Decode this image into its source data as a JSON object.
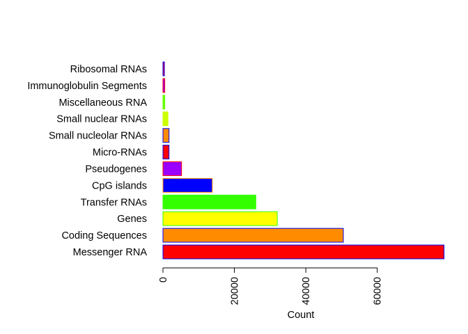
{
  "chart_data": {
    "type": "bar",
    "orientation": "horizontal",
    "title": "",
    "xlabel": "Count",
    "ylabel": "",
    "xlim": [
      0,
      78000
    ],
    "grid": false,
    "legend": "none",
    "x_ticks": [
      0,
      20000,
      40000,
      60000
    ],
    "x_tick_labels": [
      "0",
      "20000",
      "40000",
      "60000"
    ],
    "categories": [
      "Messenger RNA",
      "Coding Sequences",
      "Genes",
      "Transfer RNAs",
      "CpG islands",
      "Pseudogenes",
      "Micro-RNAs",
      "Small nucleolar RNAs",
      "Small nuclear RNAs",
      "Miscellaneous RNA",
      "Immunoglobulin Segments",
      "Ribosomal RNAs"
    ],
    "values": [
      78700,
      50500,
      32000,
      26000,
      13800,
      5200,
      1700,
      1700,
      1400,
      500,
      500,
      400
    ],
    "fill_colors": [
      "#ff0000",
      "#ff8c00",
      "#ffff00",
      "#33ff00",
      "#0000ff",
      "#9900ff",
      "#ff0000",
      "#ff8c00",
      "#ccff00",
      "#66ff00",
      "#9900ff",
      "#ff0000"
    ],
    "border_colors": [
      "#0000ff",
      "#0000ff",
      "#33ff00",
      "#33ff00",
      "#ff8c00",
      "#ff0000",
      "#0000ff",
      "#0000ff",
      "#ccff00",
      "#66ff00",
      "#ff0000",
      "#0000ff"
    ]
  }
}
